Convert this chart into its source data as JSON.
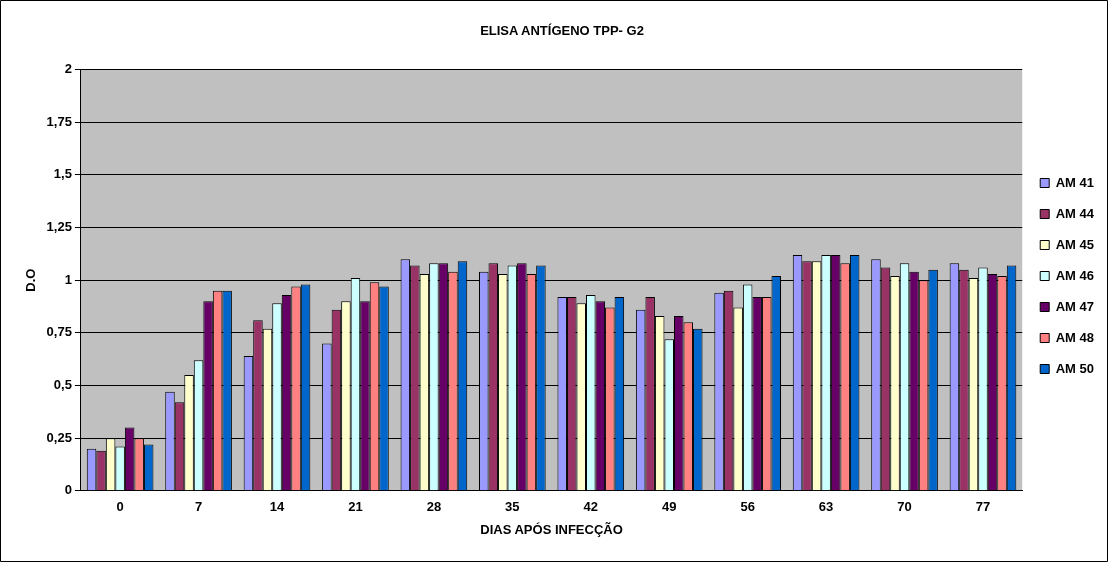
{
  "chart_data": {
    "type": "bar",
    "title": "ELISA ANTÍGENO TPP- G2",
    "xlabel": "DIAS APÓS INFECÇÃO",
    "ylabel": "D.O",
    "categories": [
      "0",
      "7",
      "14",
      "21",
      "28",
      "35",
      "42",
      "49",
      "56",
      "63",
      "70",
      "77"
    ],
    "ylim": [
      0,
      2
    ],
    "yticks": [
      0,
      {
        "value": 0.25,
        "label": "0,25"
      },
      {
        "value": 0.5,
        "label": "0,5"
      },
      {
        "value": 0.75,
        "label": "0,75"
      },
      1,
      {
        "value": 1.25,
        "label": "1,25"
      },
      {
        "value": 1.5,
        "label": "1,5"
      },
      {
        "value": 1.75,
        "label": "1,75"
      },
      2
    ],
    "grid": "y",
    "legend": "right",
    "series": [
      {
        "name": "AM 41",
        "color": "#9999ff",
        "values": [
          0.2,
          0.47,
          0.64,
          0.7,
          1.1,
          1.04,
          0.92,
          0.86,
          0.94,
          1.12,
          1.1,
          1.08
        ]
      },
      {
        "name": "AM 44",
        "color": "#993366",
        "values": [
          0.19,
          0.42,
          0.81,
          0.86,
          1.07,
          1.08,
          0.92,
          0.92,
          0.95,
          1.09,
          1.06,
          1.05
        ]
      },
      {
        "name": "AM 45",
        "color": "#ffffcc",
        "values": [
          0.25,
          0.55,
          0.77,
          0.9,
          1.03,
          1.03,
          0.89,
          0.83,
          0.87,
          1.09,
          1.02,
          1.01
        ]
      },
      {
        "name": "AM 46",
        "color": "#ccffff",
        "values": [
          0.21,
          0.62,
          0.89,
          1.01,
          1.08,
          1.07,
          0.93,
          0.72,
          0.98,
          1.12,
          1.08,
          1.06
        ]
      },
      {
        "name": "AM 47",
        "color": "#660066",
        "values": [
          0.3,
          0.9,
          0.93,
          0.9,
          1.08,
          1.08,
          0.9,
          0.83,
          0.92,
          1.12,
          1.04,
          1.03
        ]
      },
      {
        "name": "AM 48",
        "color": "#ff8080",
        "values": [
          0.25,
          0.95,
          0.97,
          0.99,
          1.04,
          1.03,
          0.87,
          0.8,
          0.92,
          1.08,
          1.0,
          1.02
        ]
      },
      {
        "name": "AM 50",
        "color": "#0066cc",
        "values": [
          0.22,
          0.95,
          0.98,
          0.97,
          1.09,
          1.07,
          0.92,
          0.77,
          1.02,
          1.12,
          1.05,
          1.07
        ]
      }
    ]
  }
}
